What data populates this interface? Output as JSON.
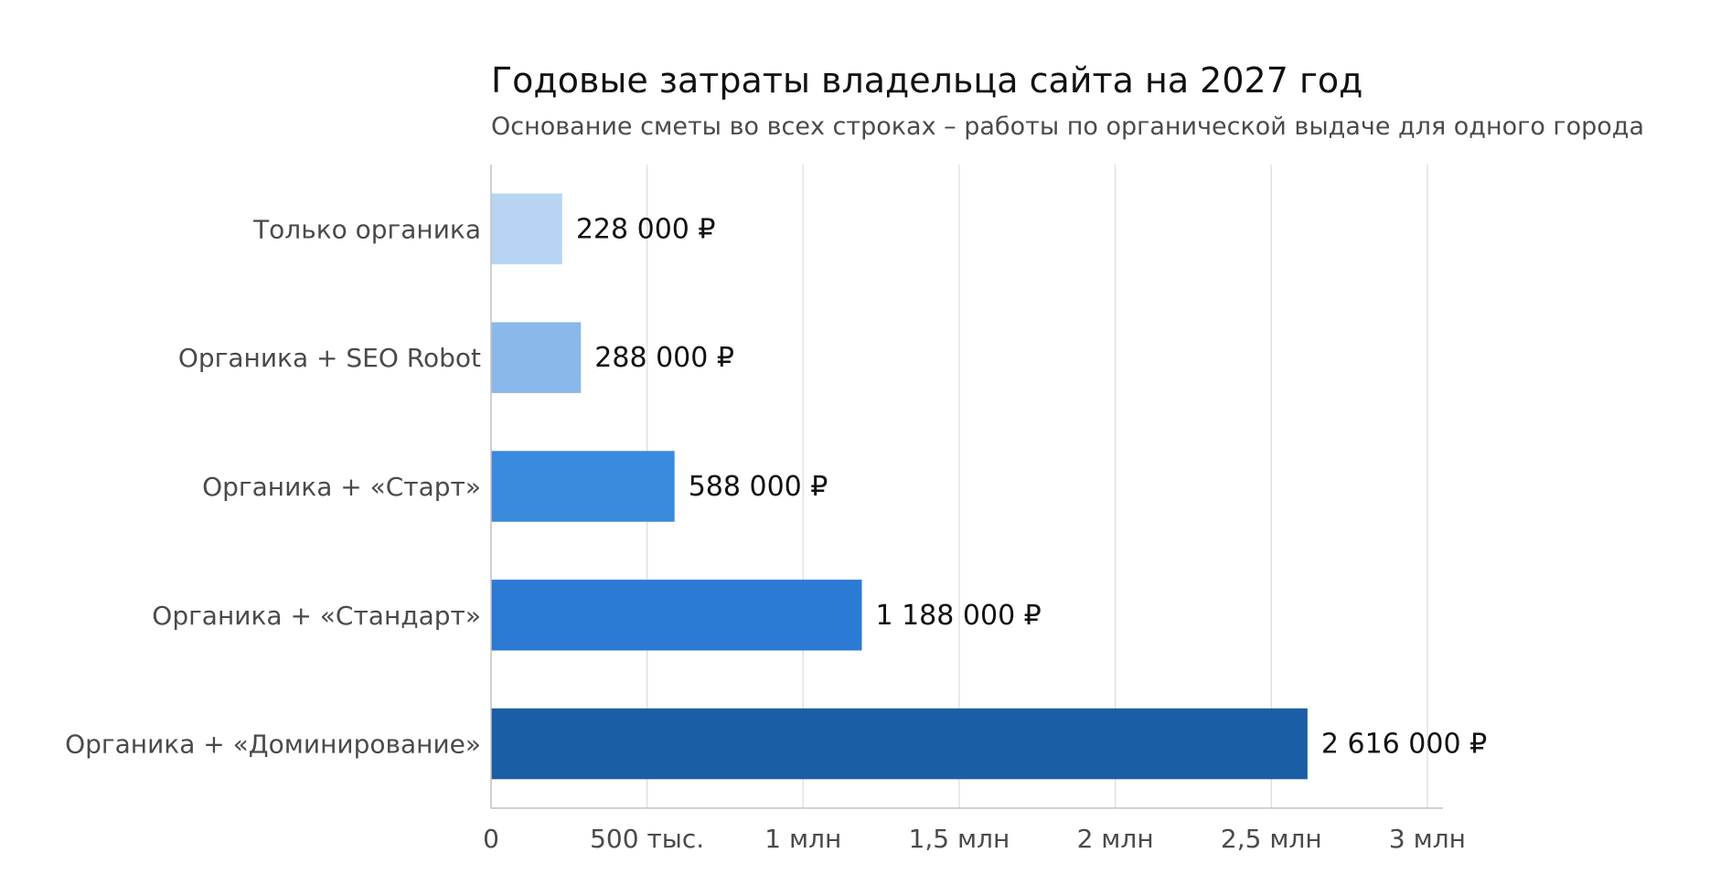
{
  "chart_data": {
    "type": "bar",
    "orientation": "horizontal",
    "title": "Годовые затраты владельца сайта на 2027 год",
    "subtitle": "Основание сметы во всех строках – работы по органической выдаче для одного города",
    "categories": [
      "Только органика",
      "Органика + SEO Robot",
      "Органика + «Старт»",
      "Органика + «Стандарт»",
      "Органика + «Доминирование»"
    ],
    "values": [
      228000,
      288000,
      588000,
      1188000,
      2616000
    ],
    "value_labels": [
      "228 000 ₽",
      "288 000 ₽",
      "588 000 ₽",
      "1 188 000 ₽",
      "2 616 000 ₽"
    ],
    "bar_colors": [
      "#b7d5f3",
      "#8ab8ea",
      "#3a8ade",
      "#2b7ad4",
      "#1a5ea6"
    ],
    "xlim": [
      0,
      3050000
    ],
    "xticks": [
      0,
      500000,
      1000000,
      1500000,
      2000000,
      2500000,
      3000000
    ],
    "xtick_labels": [
      "0",
      "500 тыс.",
      "1 млн",
      "1,5 млн",
      "2 млн",
      "2,5 млн",
      "3 млн"
    ],
    "xlabel": "",
    "ylabel": "",
    "grid": "vertical",
    "legend": "none"
  }
}
